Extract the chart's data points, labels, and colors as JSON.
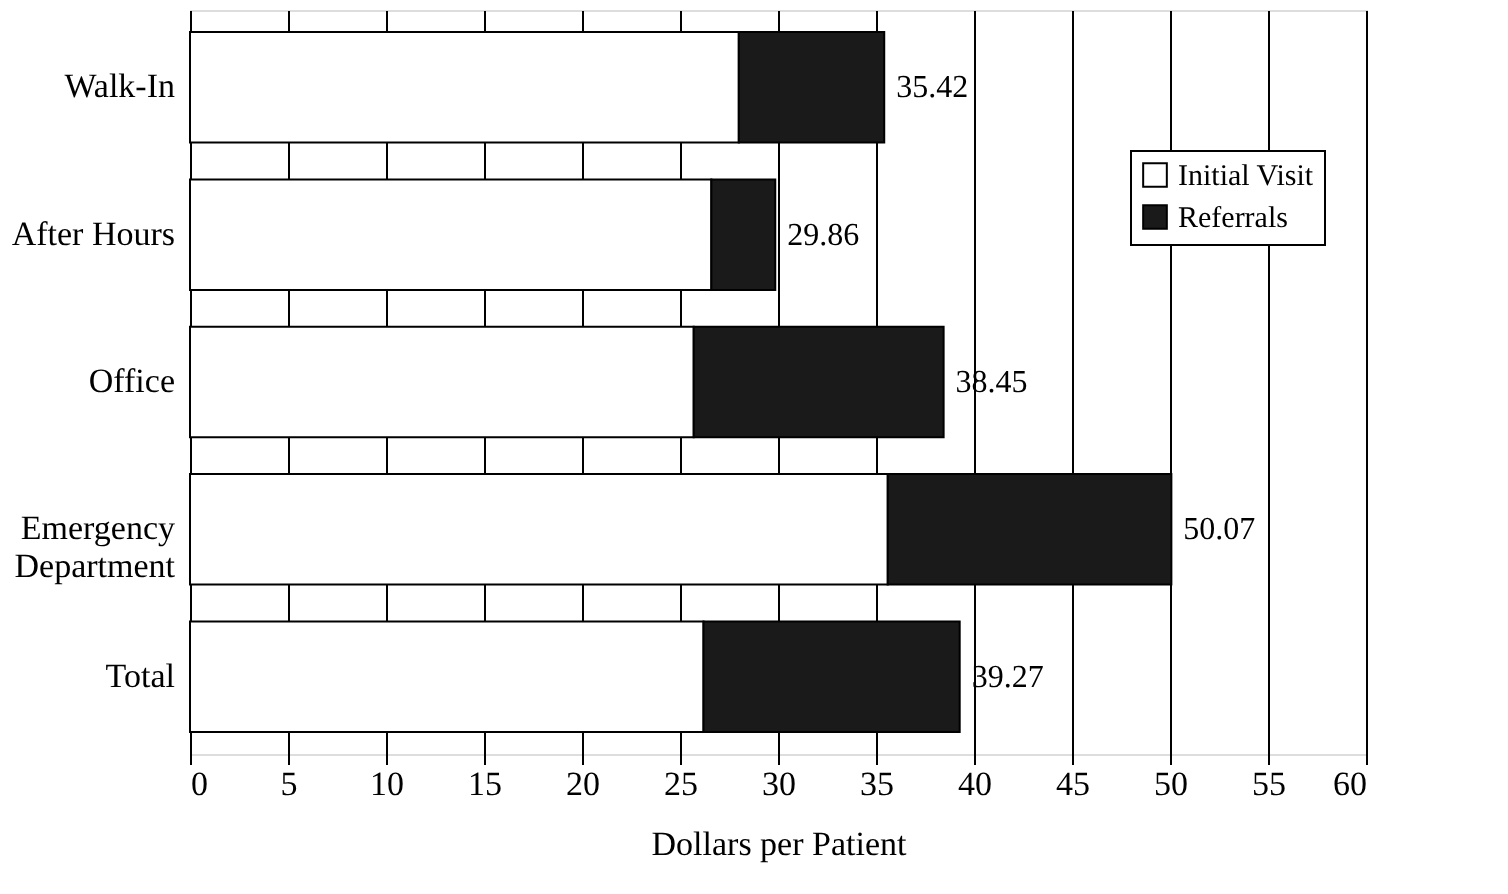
{
  "chart_data": {
    "type": "bar",
    "orientation": "horizontal",
    "stacked": true,
    "categories": [
      "Walk-In",
      "After Hours",
      "Office",
      "Emergency\nDepartment",
      "Total"
    ],
    "series": [
      {
        "name": "Initial Visit",
        "color": "#ffffff",
        "values": [
          28.0,
          26.6,
          25.7,
          35.6,
          26.2
        ]
      },
      {
        "name": "Referrals",
        "color": "#1a1a1a",
        "values": [
          7.42,
          3.26,
          12.75,
          14.47,
          13.07
        ]
      }
    ],
    "totals": [
      "35.42",
      "29.86",
      "38.45",
      "50.07",
      "39.27"
    ],
    "xlabel": "Dollars per Patient",
    "xlim": [
      0,
      60
    ],
    "xticks": [
      0,
      5,
      10,
      15,
      20,
      25,
      30,
      35,
      40,
      45,
      50,
      55,
      60
    ],
    "grid": "x",
    "legend": "top right"
  }
}
